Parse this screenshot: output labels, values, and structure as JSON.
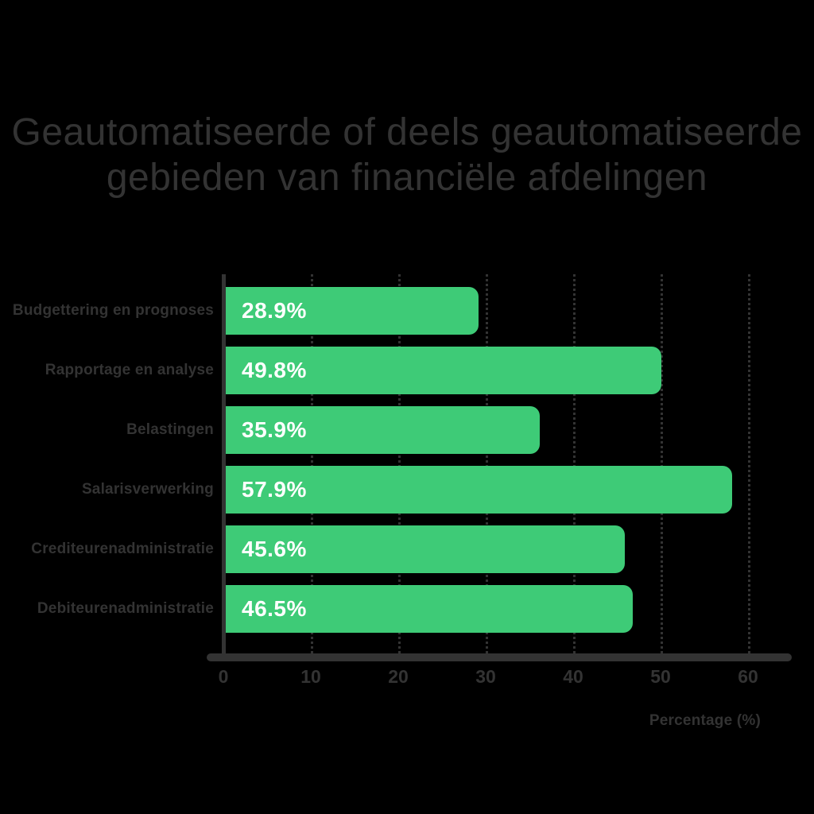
{
  "title": {
    "lines": [
      "Geautomatiseerde of deels geautomatiseerde",
      "gebieden van financiële afdelingen"
    ]
  },
  "chart_data": {
    "type": "bar",
    "orientation": "horizontal",
    "title": "Geautomatiseerde of deels geautomatiseerde gebieden van financiële afdelingen",
    "categories": [
      "Budgettering en prognoses",
      "Rapportage en analyse",
      "Belastingen",
      "Salarisverwerking",
      "Crediteurenadministratie",
      "Debiteurenadministratie"
    ],
    "values": [
      28.9,
      49.8,
      35.9,
      57.9,
      45.6,
      46.5
    ],
    "value_labels": [
      "28.9%",
      "49.8%",
      "35.9%",
      "57.9%",
      "45.6%",
      "46.5%"
    ],
    "xlabel": "Percentage (%)",
    "xlim": [
      0,
      65
    ],
    "xticks": [
      0,
      10,
      20,
      30,
      40,
      50,
      60
    ],
    "grid": true,
    "gridline_style": "dotted",
    "legend_position": "none",
    "colors": {
      "bar": "#3ecb77",
      "value_label": "#ffffff",
      "axis": "#333333",
      "text": "#333333",
      "background": "#000000"
    }
  }
}
